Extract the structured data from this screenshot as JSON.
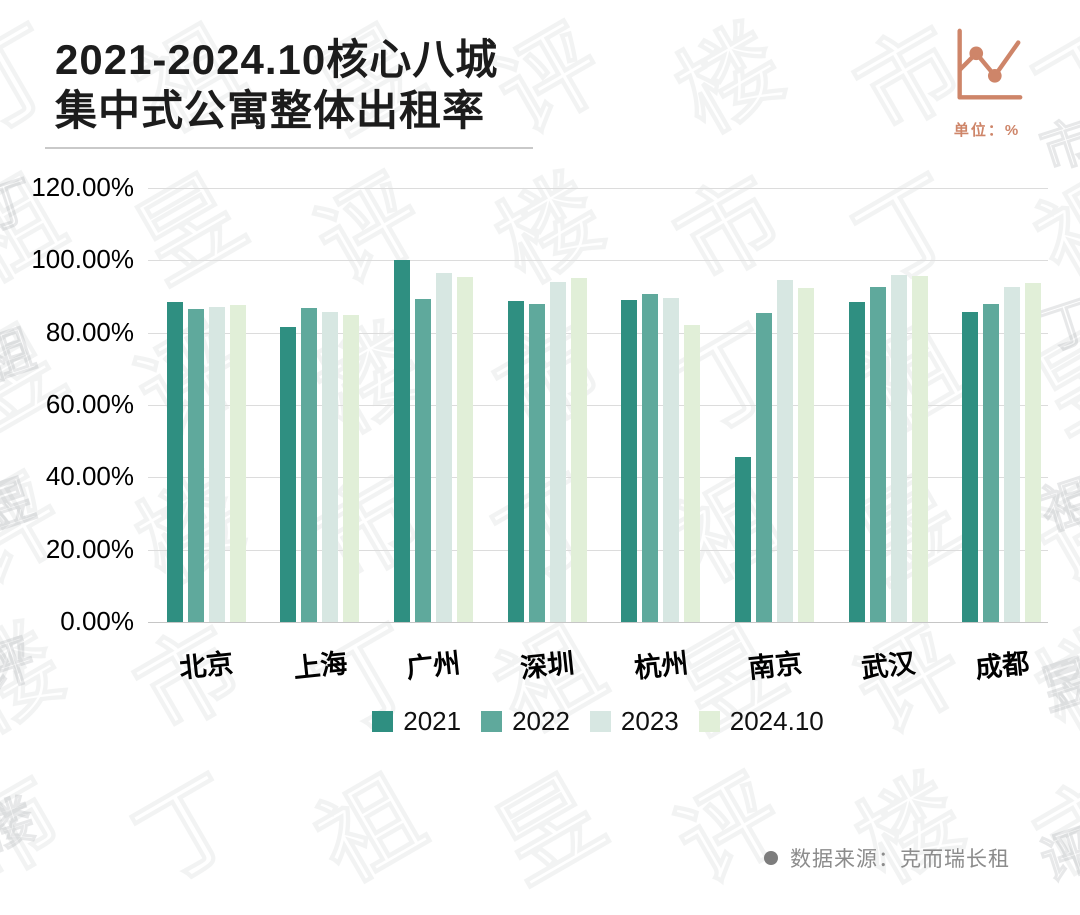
{
  "title": {
    "line1": "2021-2024.10核心八城",
    "line2": "集中式公寓整体出租率"
  },
  "unit_label": "单位：%",
  "watermark_text": "丁祖昱评楼市",
  "source": {
    "text": "数据来源：克而瑞长租"
  },
  "colors": {
    "accent_coral": "#CE8569",
    "grid": "#DCDCDC",
    "axis_line": "#C6C6C6",
    "title_text": "#1C1C1C",
    "source_text": "#8C8C8C",
    "background": "#FFFFFF"
  },
  "chart_data": {
    "type": "bar",
    "title": "2021-2024.10核心八城集中式公寓整体出租率",
    "unit": "%",
    "categories": [
      "北京",
      "上海",
      "广州",
      "深圳",
      "杭州",
      "南京",
      "武汉",
      "成都"
    ],
    "series": [
      {
        "name": "2021",
        "color": "#2F8F81",
        "values": [
          88.4,
          81.7,
          100.0,
          88.8,
          89.1,
          45.7,
          88.6,
          85.7
        ]
      },
      {
        "name": "2022",
        "color": "#5FA99C",
        "values": [
          86.5,
          86.8,
          89.3,
          88.0,
          90.6,
          85.4,
          92.5,
          87.9
        ]
      },
      {
        "name": "2023",
        "color": "#D7E7E2",
        "values": [
          87.2,
          85.8,
          96.5,
          94.0,
          89.7,
          94.5,
          96.0,
          92.6
        ]
      },
      {
        "name": "2024.10",
        "color": "#E1EFD8",
        "values": [
          87.7,
          84.9,
          95.4,
          95.2,
          82.0,
          92.3,
          95.7,
          93.8
        ]
      }
    ],
    "yticks": [
      {
        "label": "120.00%",
        "value": 120
      },
      {
        "label": "100.00%",
        "value": 100
      },
      {
        "label": "80.00%",
        "value": 80
      },
      {
        "label": "60.00%",
        "value": 60
      },
      {
        "label": "40.00%",
        "value": 40
      },
      {
        "label": "20.00%",
        "value": 20
      },
      {
        "label": "0.00%",
        "value": 0
      }
    ],
    "ylim": [
      0,
      120
    ],
    "grid": true,
    "legend_position": "bottom"
  }
}
